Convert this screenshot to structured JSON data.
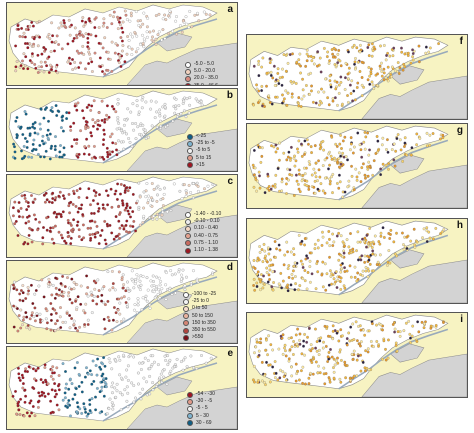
{
  "colors": {
    "land": "#f7f3c2",
    "neighbor": "#d3d3d3",
    "water": "#ffffff",
    "outline": "#8a8a8a"
  },
  "panels": [
    {
      "label": "a",
      "legend": [
        {
          "text": "-5.0 - 5.0",
          "color": "#ffffff"
        },
        {
          "text": "5.0 - 20.0",
          "color": "#f1d2bf"
        },
        {
          "text": "20.0 - 35.0",
          "color": "#d98a7f"
        },
        {
          "text": "35.0 - 46.6",
          "color": "#a01622"
        }
      ]
    },
    {
      "label": "b",
      "legend": [
        {
          "text": "<-25",
          "color": "#0f5f86"
        },
        {
          "text": "-25 to -5",
          "color": "#7eb3cf"
        },
        {
          "text": "-5 to 5",
          "color": "#f2f2f2"
        },
        {
          "text": "5 to 15",
          "color": "#e09a8a"
        },
        {
          "text": ">15",
          "color": "#a01622"
        }
      ]
    },
    {
      "label": "c",
      "legend": [
        {
          "text": "-1.40 - -0.10",
          "color": "#ffffff"
        },
        {
          "text": "-0.10 - 0.10",
          "color": "#eeeeee"
        },
        {
          "text": "0.10 - 0.40",
          "color": "#f4d8c4"
        },
        {
          "text": "0.40 - 0.75",
          "color": "#e3a18f"
        },
        {
          "text": "0.75 - 1.10",
          "color": "#c96b60"
        },
        {
          "text": "1.10 - 1.38",
          "color": "#9b1a22"
        }
      ]
    },
    {
      "label": "d",
      "legend": [
        {
          "text": "-100 to -25",
          "color": "#ffffff"
        },
        {
          "text": "-25 to 0",
          "color": "#f4f4f4"
        },
        {
          "text": "0 to 50",
          "color": "#f6ddcc"
        },
        {
          "text": "50 to 150",
          "color": "#e9b29f"
        },
        {
          "text": "150 to 350",
          "color": "#d48574"
        },
        {
          "text": "350 to 550",
          "color": "#b0443e"
        },
        {
          "text": ">550",
          "color": "#7a0e17"
        }
      ]
    },
    {
      "label": "e",
      "legend": [
        {
          "text": "-54 - -30",
          "color": "#a01622"
        },
        {
          "text": "-30 - -5",
          "color": "#e09a8a"
        },
        {
          "text": "-5 - 5",
          "color": "#f2f2f2"
        },
        {
          "text": "5 - 30",
          "color": "#7eb3cf"
        },
        {
          "text": "30 - 69",
          "color": "#0f5f86"
        }
      ]
    },
    {
      "label": "f",
      "legend": []
    },
    {
      "label": "g",
      "legend": []
    },
    {
      "label": "h",
      "legend": []
    },
    {
      "label": "i",
      "legend": []
    }
  ]
}
